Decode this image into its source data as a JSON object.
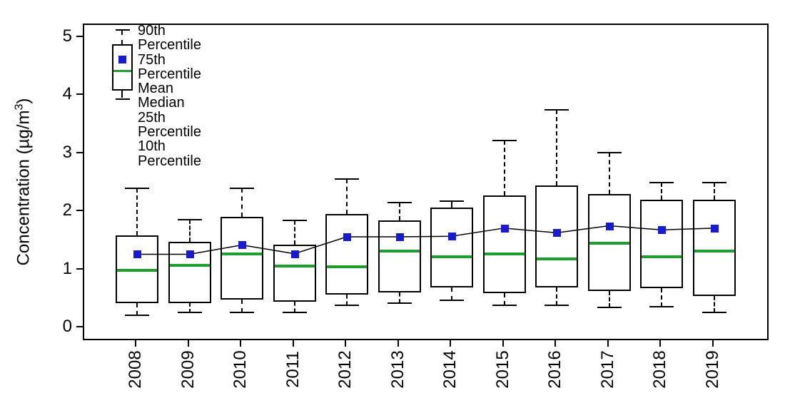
{
  "axes": {
    "y_title_prefix": "Concentration (µg/m",
    "y_title_sup": "3",
    "y_title_suffix": ")"
  },
  "legend": {
    "items": [
      {
        "label": "90th Percentile"
      },
      {
        "label": "75th Percentile"
      },
      {
        "label": "Mean"
      },
      {
        "label": "Median"
      },
      {
        "label": "25th Percentile"
      },
      {
        "label": "10th Percentile"
      }
    ]
  },
  "colors": {
    "mean_marker": "#1a1acd",
    "median_line": "#1f9e2c",
    "box_line": "#000000",
    "mean_connector": "#000000"
  },
  "chart_data": {
    "type": "boxplot",
    "title": "",
    "xlabel": "",
    "ylabel": "Concentration (µg/m³)",
    "ylim": [
      0,
      5
    ],
    "y_ticks": [
      0,
      1,
      2,
      3,
      4,
      5
    ],
    "grid": false,
    "legend_position": "top-left-inside",
    "categories": [
      "2008",
      "2009",
      "2010",
      "2011",
      "2012",
      "2013",
      "2014",
      "2015",
      "2016",
      "2017",
      "2018",
      "2019"
    ],
    "series": [
      {
        "name": "90th Percentile",
        "values": [
          2.4,
          1.87,
          2.4,
          1.85,
          2.56,
          2.16,
          2.19,
          3.23,
          3.75,
          3.02,
          2.5,
          2.5
        ]
      },
      {
        "name": "75th Percentile",
        "values": [
          1.6,
          1.49,
          1.92,
          1.44,
          1.96,
          1.85,
          2.07,
          2.28,
          2.45,
          2.31,
          2.21,
          2.21
        ]
      },
      {
        "name": "Mean",
        "values": [
          1.27,
          1.27,
          1.43,
          1.28,
          1.57,
          1.57,
          1.58,
          1.72,
          1.64,
          1.76,
          1.69,
          1.72
        ]
      },
      {
        "name": "Median",
        "values": [
          0.99,
          1.08,
          1.27,
          1.07,
          1.05,
          1.32,
          1.23,
          1.27,
          1.19,
          1.46,
          1.23,
          1.32
        ]
      },
      {
        "name": "25th Percentile",
        "values": [
          0.43,
          0.43,
          0.49,
          0.45,
          0.58,
          0.61,
          0.7,
          0.6,
          0.7,
          0.64,
          0.69,
          0.55
        ]
      },
      {
        "name": "10th Percentile",
        "values": [
          0.22,
          0.27,
          0.27,
          0.27,
          0.39,
          0.43,
          0.48,
          0.39,
          0.39,
          0.36,
          0.37,
          0.27
        ]
      }
    ]
  }
}
